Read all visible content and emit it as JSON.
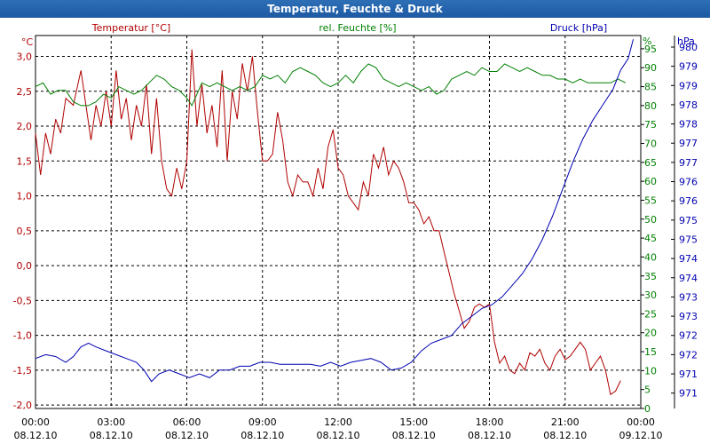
{
  "window": {
    "title": "Temperatur, Feuchte & Druck"
  },
  "chart_data": {
    "type": "line",
    "title": "Temperatur, Feuchte & Druck",
    "xlabel": "",
    "x_ticks": [
      {
        "time": "00:00",
        "date": "08.12.10"
      },
      {
        "time": "03:00",
        "date": "08.12.10"
      },
      {
        "time": "06:00",
        "date": "08.12.10"
      },
      {
        "time": "09:00",
        "date": "08.12.10"
      },
      {
        "time": "12:00",
        "date": "08.12.10"
      },
      {
        "time": "15:00",
        "date": "08.12.10"
      },
      {
        "time": "18:00",
        "date": "08.12.10"
      },
      {
        "time": "21:00",
        "date": "08.12.10"
      },
      {
        "time": "00:00",
        "date": "09.12.10"
      }
    ],
    "xlim": [
      0,
      24
    ],
    "grid": true,
    "axes": {
      "temp": {
        "unit": "°C",
        "ylim": [
          -2.05,
          3.3
        ],
        "ticks": [
          "3,0",
          "2,5",
          "2,0",
          "1,5",
          "1,0",
          "0,5",
          "0,0",
          "-0,5",
          "-1,0",
          "-1,5",
          "-2,0"
        ],
        "tick_values": [
          3.0,
          2.5,
          2.0,
          1.5,
          1.0,
          0.5,
          0.0,
          -0.5,
          -1.0,
          -1.5,
          -2.0
        ]
      },
      "hum": {
        "unit": "%",
        "ylim": [
          0,
          98.5
        ],
        "ticks": [
          "95",
          "90",
          "85",
          "80",
          "75",
          "70",
          "65",
          "60",
          "55",
          "50",
          "45",
          "40",
          "35",
          "30",
          "25",
          "20",
          "15",
          "10",
          "5",
          "0"
        ],
        "tick_values": [
          95,
          90,
          85,
          80,
          75,
          70,
          65,
          60,
          55,
          50,
          45,
          40,
          35,
          30,
          25,
          20,
          15,
          10,
          5,
          0
        ]
      },
      "press": {
        "unit": "hPa",
        "ylim": [
          970.6,
          980.3
        ],
        "ticks": [
          "980",
          "979",
          "979",
          "978",
          "978",
          "977",
          "977",
          "976",
          "976",
          "975",
          "975",
          "974",
          "974",
          "973",
          "973",
          "972",
          "972",
          "971",
          "971"
        ],
        "tick_values": [
          980.0,
          979.5,
          979.0,
          978.5,
          978.0,
          977.5,
          977.0,
          976.5,
          976.0,
          975.5,
          975.0,
          974.5,
          974.0,
          973.5,
          973.0,
          972.5,
          972.0,
          971.5,
          971.0
        ]
      }
    },
    "series": [
      {
        "name": "Temperatur [°C]",
        "axis": "temp",
        "color": "#b00000",
        "points": [
          [
            0,
            1.9
          ],
          [
            0.2,
            1.3
          ],
          [
            0.4,
            1.9
          ],
          [
            0.6,
            1.6
          ],
          [
            0.8,
            2.1
          ],
          [
            1,
            1.9
          ],
          [
            1.2,
            2.4
          ],
          [
            1.5,
            2.3
          ],
          [
            1.8,
            2.8
          ],
          [
            2,
            2.3
          ],
          [
            2.2,
            1.8
          ],
          [
            2.4,
            2.3
          ],
          [
            2.6,
            2.0
          ],
          [
            2.8,
            2.5
          ],
          [
            3,
            2.0
          ],
          [
            3.2,
            2.8
          ],
          [
            3.4,
            2.1
          ],
          [
            3.6,
            2.4
          ],
          [
            3.8,
            1.8
          ],
          [
            4,
            2.3
          ],
          [
            4.2,
            2.0
          ],
          [
            4.4,
            2.6
          ],
          [
            4.6,
            1.6
          ],
          [
            4.8,
            2.4
          ],
          [
            5,
            1.5
          ],
          [
            5.2,
            1.1
          ],
          [
            5.4,
            1.0
          ],
          [
            5.6,
            1.4
          ],
          [
            5.8,
            1.1
          ],
          [
            6,
            1.5
          ],
          [
            6.2,
            3.1
          ],
          [
            6.4,
            2.0
          ],
          [
            6.6,
            2.6
          ],
          [
            6.8,
            1.9
          ],
          [
            7,
            2.3
          ],
          [
            7.2,
            1.7
          ],
          [
            7.4,
            2.8
          ],
          [
            7.6,
            1.5
          ],
          [
            7.8,
            2.5
          ],
          [
            8,
            2.1
          ],
          [
            8.2,
            2.9
          ],
          [
            8.4,
            2.5
          ],
          [
            8.6,
            3.0
          ],
          [
            8.8,
            2.2
          ],
          [
            9,
            1.5
          ],
          [
            9.2,
            1.5
          ],
          [
            9.4,
            1.6
          ],
          [
            9.6,
            2.2
          ],
          [
            9.8,
            1.8
          ],
          [
            10,
            1.2
          ],
          [
            10.2,
            1.0
          ],
          [
            10.4,
            1.3
          ],
          [
            10.6,
            1.2
          ],
          [
            10.8,
            1.2
          ],
          [
            11,
            1.0
          ],
          [
            11.2,
            1.4
          ],
          [
            11.4,
            1.1
          ],
          [
            11.6,
            1.7
          ],
          [
            11.8,
            1.95
          ],
          [
            12,
            1.4
          ],
          [
            12.2,
            1.3
          ],
          [
            12.4,
            1.0
          ],
          [
            12.6,
            0.9
          ],
          [
            12.8,
            0.8
          ],
          [
            13,
            1.2
          ],
          [
            13.2,
            1.0
          ],
          [
            13.4,
            1.6
          ],
          [
            13.6,
            1.4
          ],
          [
            13.8,
            1.7
          ],
          [
            14,
            1.3
          ],
          [
            14.2,
            1.5
          ],
          [
            14.4,
            1.4
          ],
          [
            14.6,
            1.2
          ],
          [
            14.8,
            0.9
          ],
          [
            15,
            0.9
          ],
          [
            15.2,
            0.8
          ],
          [
            15.4,
            0.6
          ],
          [
            15.6,
            0.7
          ],
          [
            15.8,
            0.5
          ],
          [
            16,
            0.5
          ],
          [
            16.2,
            0.2
          ],
          [
            16.4,
            -0.1
          ],
          [
            16.6,
            -0.4
          ],
          [
            16.8,
            -0.65
          ],
          [
            17,
            -0.9
          ],
          [
            17.2,
            -0.8
          ],
          [
            17.4,
            -0.6
          ],
          [
            17.6,
            -0.55
          ],
          [
            17.8,
            -0.6
          ],
          [
            18,
            -0.55
          ],
          [
            18.2,
            -1.1
          ],
          [
            18.4,
            -1.4
          ],
          [
            18.6,
            -1.3
          ],
          [
            18.8,
            -1.5
          ],
          [
            19,
            -1.55
          ],
          [
            19.2,
            -1.4
          ],
          [
            19.4,
            -1.5
          ],
          [
            19.6,
            -1.25
          ],
          [
            19.8,
            -1.3
          ],
          [
            20,
            -1.2
          ],
          [
            20.2,
            -1.4
          ],
          [
            20.4,
            -1.5
          ],
          [
            20.6,
            -1.3
          ],
          [
            20.8,
            -1.2
          ],
          [
            21,
            -1.35
          ],
          [
            21.2,
            -1.3
          ],
          [
            21.4,
            -1.2
          ],
          [
            21.6,
            -1.1
          ],
          [
            21.8,
            -1.2
          ],
          [
            22,
            -1.5
          ],
          [
            22.2,
            -1.4
          ],
          [
            22.4,
            -1.3
          ],
          [
            22.6,
            -1.5
          ],
          [
            22.8,
            -1.85
          ],
          [
            23,
            -1.8
          ],
          [
            23.2,
            -1.65
          ]
        ]
      },
      {
        "name": "rel. Feuchte [%]",
        "axis": "hum",
        "color": "#008000",
        "points": [
          [
            0,
            85
          ],
          [
            0.3,
            86
          ],
          [
            0.6,
            83
          ],
          [
            0.9,
            84
          ],
          [
            1.2,
            84
          ],
          [
            1.5,
            81
          ],
          [
            1.8,
            80
          ],
          [
            2.1,
            80
          ],
          [
            2.4,
            81
          ],
          [
            2.7,
            83
          ],
          [
            3,
            82
          ],
          [
            3.3,
            85
          ],
          [
            3.6,
            84
          ],
          [
            3.9,
            83
          ],
          [
            4.2,
            84
          ],
          [
            4.5,
            86
          ],
          [
            4.8,
            88
          ],
          [
            5.1,
            87
          ],
          [
            5.4,
            85
          ],
          [
            5.7,
            84
          ],
          [
            6,
            82
          ],
          [
            6.2,
            80
          ],
          [
            6.4,
            83
          ],
          [
            6.6,
            86
          ],
          [
            6.9,
            85
          ],
          [
            7.2,
            86
          ],
          [
            7.5,
            85
          ],
          [
            7.8,
            84
          ],
          [
            8.1,
            85
          ],
          [
            8.4,
            84
          ],
          [
            8.7,
            85
          ],
          [
            9,
            88
          ],
          [
            9.3,
            87
          ],
          [
            9.6,
            88
          ],
          [
            9.9,
            86
          ],
          [
            10.2,
            89
          ],
          [
            10.5,
            90
          ],
          [
            10.8,
            89
          ],
          [
            11.1,
            88
          ],
          [
            11.4,
            86
          ],
          [
            11.7,
            85
          ],
          [
            12,
            86
          ],
          [
            12.3,
            88
          ],
          [
            12.6,
            86
          ],
          [
            12.9,
            89
          ],
          [
            13.2,
            91
          ],
          [
            13.5,
            90
          ],
          [
            13.8,
            87
          ],
          [
            14.1,
            86
          ],
          [
            14.4,
            85
          ],
          [
            14.7,
            86
          ],
          [
            15,
            85
          ],
          [
            15.3,
            84
          ],
          [
            15.6,
            85
          ],
          [
            15.9,
            83
          ],
          [
            16.2,
            84
          ],
          [
            16.5,
            87
          ],
          [
            16.8,
            88
          ],
          [
            17.1,
            89
          ],
          [
            17.4,
            88
          ],
          [
            17.7,
            90
          ],
          [
            18,
            89
          ],
          [
            18.3,
            89
          ],
          [
            18.6,
            91
          ],
          [
            18.9,
            90
          ],
          [
            19.2,
            89
          ],
          [
            19.5,
            90
          ],
          [
            19.8,
            89
          ],
          [
            20.1,
            88
          ],
          [
            20.4,
            88
          ],
          [
            20.7,
            87
          ],
          [
            21,
            87
          ],
          [
            21.3,
            86
          ],
          [
            21.6,
            87
          ],
          [
            21.9,
            86
          ],
          [
            22.2,
            86
          ],
          [
            22.5,
            86
          ],
          [
            22.8,
            86
          ],
          [
            23.1,
            87
          ],
          [
            23.4,
            86
          ]
        ]
      },
      {
        "name": "Druck [hPa]",
        "axis": "press",
        "color": "#0000b0",
        "points": [
          [
            0,
            971.9
          ],
          [
            0.4,
            972.0
          ],
          [
            0.8,
            971.95
          ],
          [
            1.2,
            971.8
          ],
          [
            1.5,
            971.95
          ],
          [
            1.8,
            972.2
          ],
          [
            2.1,
            972.3
          ],
          [
            2.4,
            972.2
          ],
          [
            2.8,
            972.1
          ],
          [
            3.2,
            972.0
          ],
          [
            3.6,
            971.9
          ],
          [
            4,
            971.8
          ],
          [
            4.3,
            971.6
          ],
          [
            4.6,
            971.3
          ],
          [
            4.9,
            971.5
          ],
          [
            5.3,
            971.6
          ],
          [
            5.7,
            971.5
          ],
          [
            6.1,
            971.4
          ],
          [
            6.5,
            971.5
          ],
          [
            6.9,
            971.4
          ],
          [
            7.3,
            971.6
          ],
          [
            7.7,
            971.6
          ],
          [
            8.1,
            971.7
          ],
          [
            8.5,
            971.7
          ],
          [
            8.9,
            971.8
          ],
          [
            9.3,
            971.8
          ],
          [
            9.7,
            971.75
          ],
          [
            10.1,
            971.75
          ],
          [
            10.5,
            971.75
          ],
          [
            10.9,
            971.75
          ],
          [
            11.3,
            971.7
          ],
          [
            11.7,
            971.8
          ],
          [
            12.1,
            971.7
          ],
          [
            12.5,
            971.8
          ],
          [
            12.9,
            971.85
          ],
          [
            13.3,
            971.9
          ],
          [
            13.7,
            971.8
          ],
          [
            14.1,
            971.6
          ],
          [
            14.5,
            971.65
          ],
          [
            14.9,
            971.8
          ],
          [
            15.3,
            972.1
          ],
          [
            15.7,
            972.3
          ],
          [
            16.1,
            972.4
          ],
          [
            16.5,
            972.5
          ],
          [
            16.9,
            972.8
          ],
          [
            17.3,
            973.0
          ],
          [
            17.7,
            973.2
          ],
          [
            18.1,
            973.3
          ],
          [
            18.5,
            973.5
          ],
          [
            18.9,
            973.8
          ],
          [
            19.3,
            974.1
          ],
          [
            19.7,
            974.5
          ],
          [
            20.1,
            975.0
          ],
          [
            20.5,
            975.6
          ],
          [
            20.9,
            976.3
          ],
          [
            21.3,
            977.0
          ],
          [
            21.7,
            977.6
          ],
          [
            22.1,
            978.1
          ],
          [
            22.5,
            978.5
          ],
          [
            22.9,
            978.9
          ],
          [
            23.2,
            979.4
          ],
          [
            23.5,
            979.7
          ],
          [
            23.7,
            980.2
          ]
        ]
      }
    ]
  }
}
